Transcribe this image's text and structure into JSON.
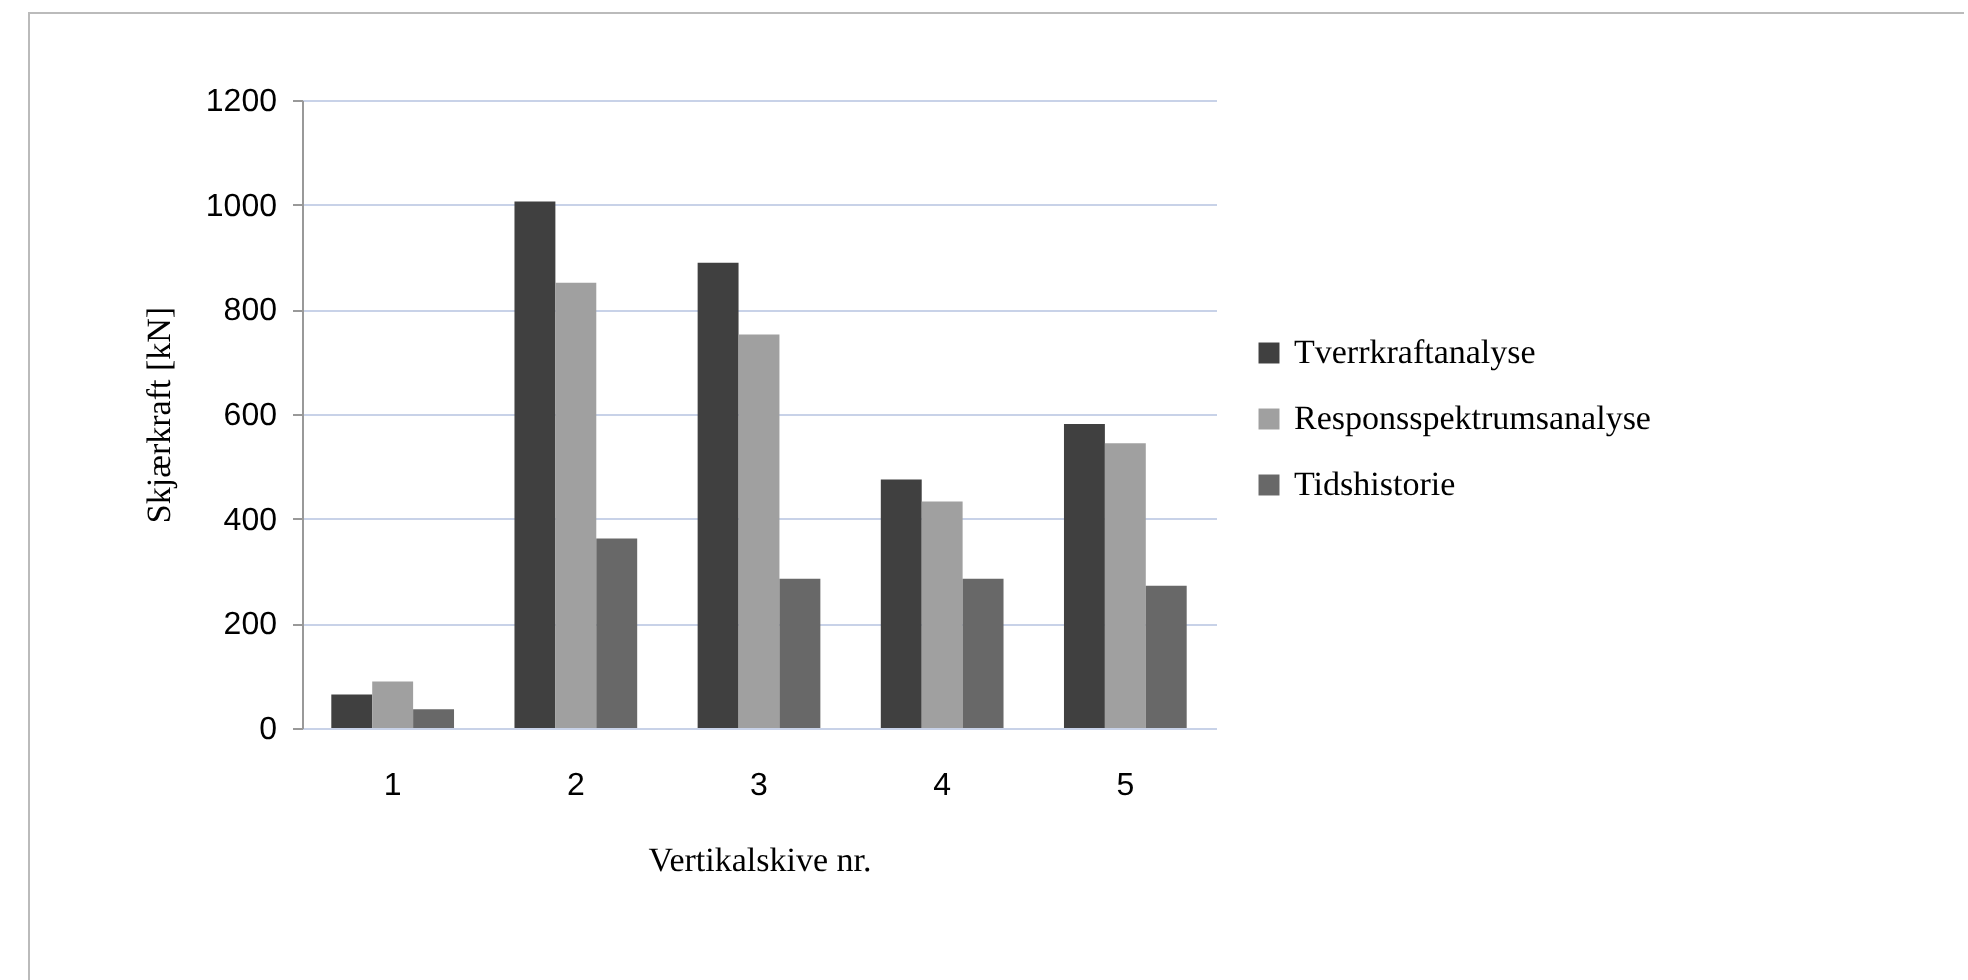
{
  "chart_data": {
    "type": "bar",
    "xlabel": "Vertikalskive nr.",
    "ylabel": "Skjærkraft [kN]",
    "categories": [
      "1",
      "2",
      "3",
      "4",
      "5"
    ],
    "series": [
      {
        "name": "Tverrkraftanalyse",
        "color": "#404040",
        "values": [
          64,
          1006,
          889,
          475,
          581
        ]
      },
      {
        "name": "Responsspektrumsanalyse",
        "color": "#a0a0a0",
        "values": [
          89,
          851,
          752,
          433,
          544
        ]
      },
      {
        "name": "Tidshistorie",
        "color": "#686868",
        "values": [
          36,
          362,
          285,
          285,
          272
        ]
      }
    ],
    "ylim": [
      0,
      1200
    ],
    "yticks": [
      0,
      200,
      400,
      600,
      800,
      1000,
      1200
    ],
    "grid": "y",
    "legend": "right"
  }
}
